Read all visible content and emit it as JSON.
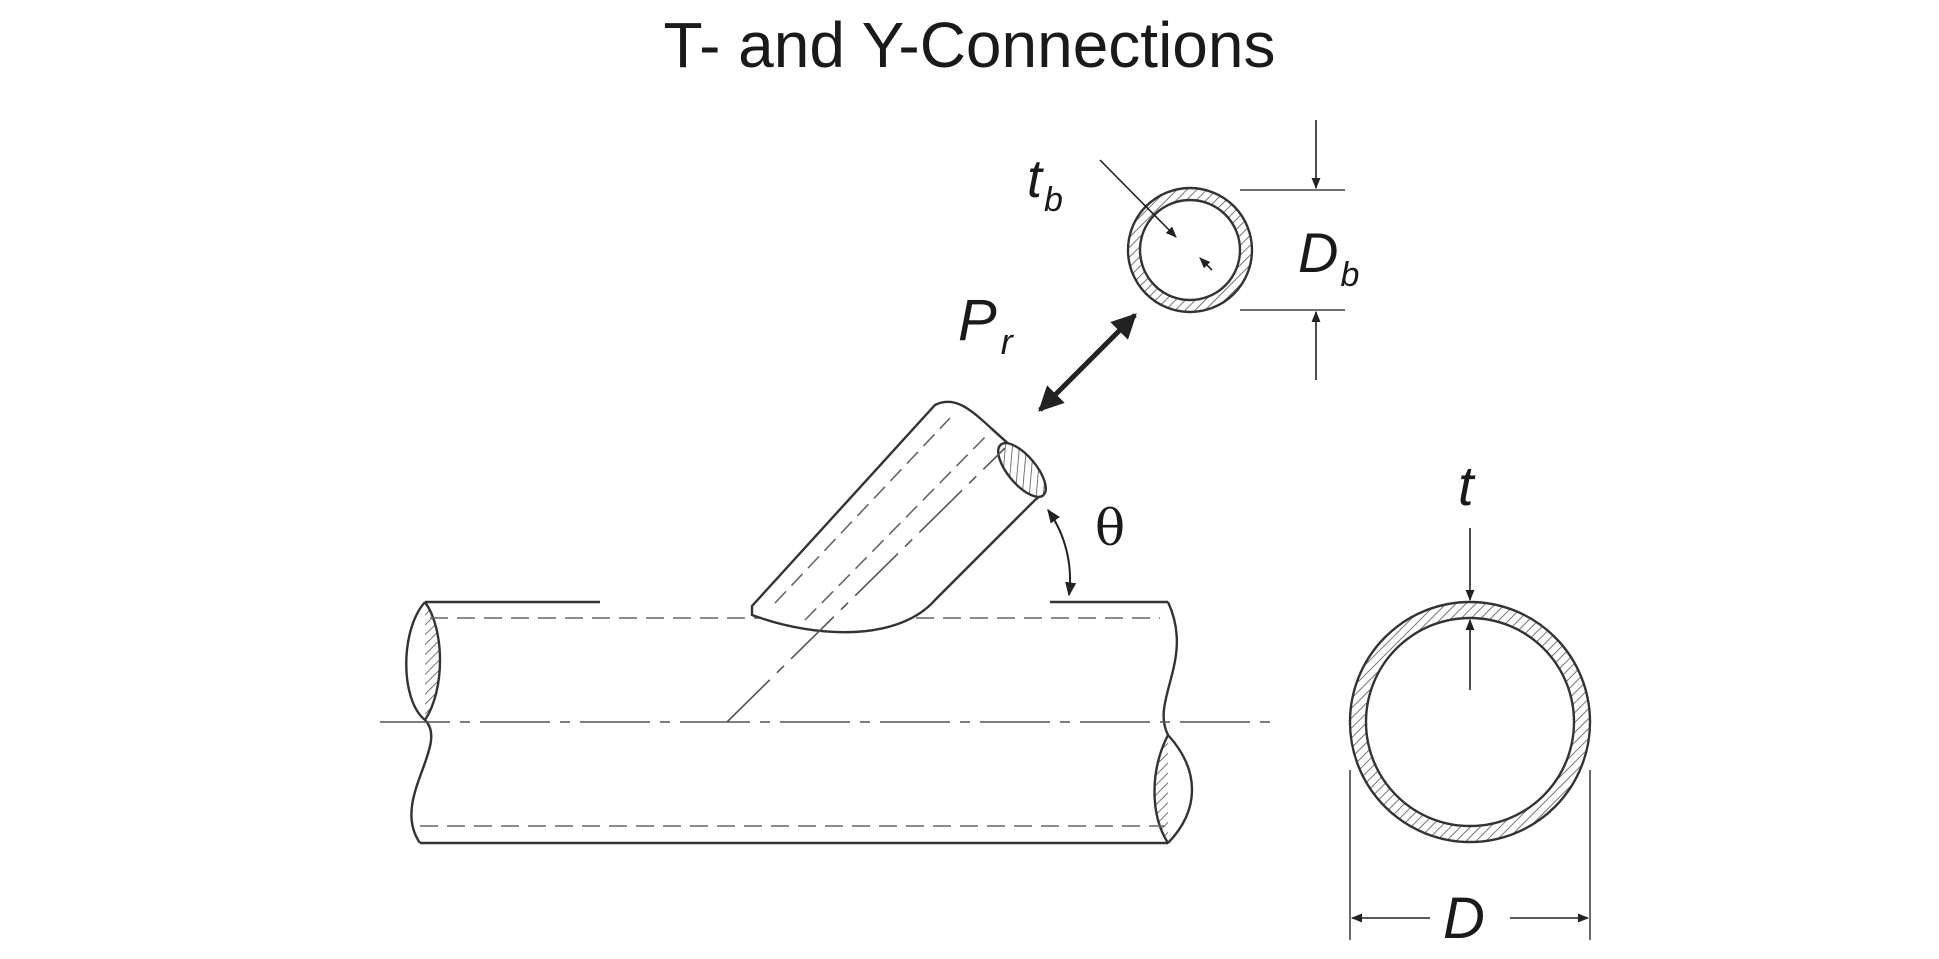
{
  "title": "T- and Y-Connections",
  "labels": {
    "branch_thickness": "t",
    "branch_thickness_sub": "b",
    "branch_diameter": "D",
    "branch_diameter_sub": "b",
    "load": "P",
    "load_sub": "r",
    "angle": "θ",
    "chord_thickness": "t",
    "chord_diameter": "D"
  }
}
